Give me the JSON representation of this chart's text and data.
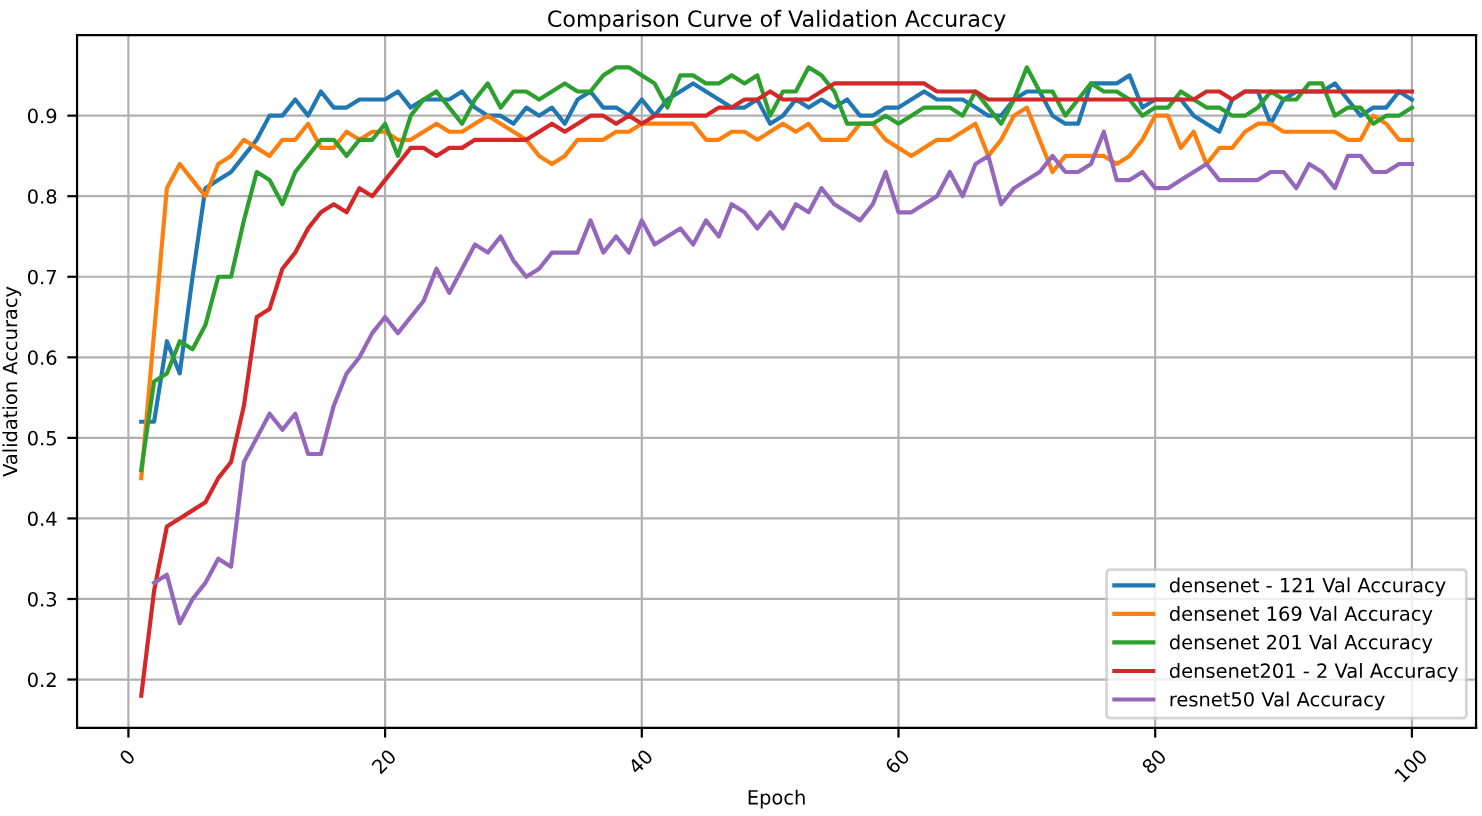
{
  "chart_data": {
    "type": "line",
    "title": "Comparison Curve of Validation Accuracy",
    "xlabel": "Epoch",
    "ylabel": "Validation Accuracy",
    "x": [
      1,
      2,
      3,
      4,
      5,
      6,
      7,
      8,
      9,
      10,
      11,
      12,
      13,
      14,
      15,
      16,
      17,
      18,
      19,
      20,
      21,
      22,
      23,
      24,
      25,
      26,
      27,
      28,
      29,
      30,
      31,
      32,
      33,
      34,
      35,
      36,
      37,
      38,
      39,
      40,
      41,
      42,
      43,
      44,
      45,
      46,
      47,
      48,
      49,
      50,
      51,
      52,
      53,
      54,
      55,
      56,
      57,
      58,
      59,
      60,
      61,
      62,
      63,
      64,
      65,
      66,
      67,
      68,
      69,
      70,
      71,
      72,
      73,
      74,
      75,
      76,
      77,
      78,
      79,
      80,
      81,
      82,
      83,
      84,
      85,
      86,
      87,
      88,
      89,
      90,
      91,
      92,
      93,
      94,
      95,
      96,
      97,
      98,
      99,
      100
    ],
    "xlim": [
      -4,
      105
    ],
    "xticks": [
      0,
      20,
      40,
      60,
      80,
      100
    ],
    "ylim": [
      0.14,
      1.0
    ],
    "yticks": [
      0.2,
      0.3,
      0.4,
      0.5,
      0.6,
      0.7,
      0.8,
      0.9
    ],
    "grid": true,
    "legend": "bottom right",
    "marker": "none",
    "line_style": "solid",
    "series": [
      {
        "name": "densenet - 121 Val Accuracy",
        "color": "#1f77b4",
        "values": [
          0.52,
          0.52,
          0.62,
          0.58,
          0.7,
          0.81,
          0.82,
          0.83,
          0.85,
          0.87,
          0.9,
          0.9,
          0.92,
          0.9,
          0.93,
          0.91,
          0.91,
          0.92,
          0.92,
          0.92,
          0.93,
          0.91,
          0.92,
          0.92,
          0.92,
          0.93,
          0.91,
          0.9,
          0.9,
          0.89,
          0.91,
          0.9,
          0.91,
          0.89,
          0.92,
          0.93,
          0.91,
          0.91,
          0.9,
          0.92,
          0.9,
          0.92,
          0.93,
          0.94,
          0.93,
          0.92,
          0.91,
          0.91,
          0.92,
          0.89,
          0.9,
          0.92,
          0.91,
          0.92,
          0.91,
          0.92,
          0.9,
          0.9,
          0.91,
          0.91,
          0.92,
          0.93,
          0.92,
          0.92,
          0.92,
          0.91,
          0.9,
          0.9,
          0.92,
          0.93,
          0.93,
          0.9,
          0.89,
          0.89,
          0.94,
          0.94,
          0.94,
          0.95,
          0.91,
          0.92,
          0.92,
          0.92,
          0.9,
          0.89,
          0.88,
          0.92,
          0.93,
          0.93,
          0.89,
          0.92,
          0.93,
          0.93,
          0.93,
          0.94,
          0.92,
          0.9,
          0.91,
          0.91,
          0.93,
          0.92
        ]
      },
      {
        "name": "densenet 169 Val Accuracy",
        "color": "#ff7f0e",
        "values": [
          0.45,
          0.63,
          0.81,
          0.84,
          0.82,
          0.8,
          0.84,
          0.85,
          0.87,
          0.86,
          0.85,
          0.87,
          0.87,
          0.89,
          0.86,
          0.86,
          0.88,
          0.87,
          0.88,
          0.88,
          0.87,
          0.87,
          0.88,
          0.89,
          0.88,
          0.88,
          0.89,
          0.9,
          0.89,
          0.88,
          0.87,
          0.85,
          0.84,
          0.85,
          0.87,
          0.87,
          0.87,
          0.88,
          0.88,
          0.89,
          0.89,
          0.89,
          0.89,
          0.89,
          0.87,
          0.87,
          0.88,
          0.88,
          0.87,
          0.88,
          0.89,
          0.88,
          0.89,
          0.87,
          0.87,
          0.87,
          0.89,
          0.89,
          0.87,
          0.86,
          0.85,
          0.86,
          0.87,
          0.87,
          0.88,
          0.89,
          0.85,
          0.87,
          0.9,
          0.91,
          0.87,
          0.83,
          0.85,
          0.85,
          0.85,
          0.85,
          0.84,
          0.85,
          0.87,
          0.9,
          0.9,
          0.86,
          0.88,
          0.84,
          0.86,
          0.86,
          0.88,
          0.89,
          0.89,
          0.88,
          0.88,
          0.88,
          0.88,
          0.88,
          0.87,
          0.87,
          0.9,
          0.89,
          0.87,
          0.87
        ]
      },
      {
        "name": "densenet 201 Val Accuracy",
        "color": "#2ca02c",
        "values": [
          0.46,
          0.57,
          0.58,
          0.62,
          0.61,
          0.64,
          0.7,
          0.7,
          0.77,
          0.83,
          0.82,
          0.79,
          0.83,
          0.85,
          0.87,
          0.87,
          0.85,
          0.87,
          0.87,
          0.89,
          0.85,
          0.9,
          0.92,
          0.93,
          0.91,
          0.89,
          0.92,
          0.94,
          0.91,
          0.93,
          0.93,
          0.92,
          0.93,
          0.94,
          0.93,
          0.93,
          0.95,
          0.96,
          0.96,
          0.95,
          0.94,
          0.91,
          0.95,
          0.95,
          0.94,
          0.94,
          0.95,
          0.94,
          0.95,
          0.9,
          0.93,
          0.93,
          0.96,
          0.95,
          0.93,
          0.89,
          0.89,
          0.89,
          0.9,
          0.89,
          0.9,
          0.91,
          0.91,
          0.91,
          0.9,
          0.93,
          0.91,
          0.89,
          0.92,
          0.96,
          0.93,
          0.93,
          0.9,
          0.92,
          0.94,
          0.93,
          0.93,
          0.92,
          0.9,
          0.91,
          0.91,
          0.93,
          0.92,
          0.91,
          0.91,
          0.9,
          0.9,
          0.91,
          0.93,
          0.92,
          0.92,
          0.94,
          0.94,
          0.9,
          0.91,
          0.91,
          0.89,
          0.9,
          0.9,
          0.91
        ]
      },
      {
        "name": "densenet201 - 2 Val Accuracy",
        "color": "#d62728",
        "values": [
          0.18,
          0.31,
          0.39,
          0.4,
          0.41,
          0.42,
          0.45,
          0.47,
          0.54,
          0.65,
          0.66,
          0.71,
          0.73,
          0.76,
          0.78,
          0.79,
          0.78,
          0.81,
          0.8,
          0.82,
          0.84,
          0.86,
          0.86,
          0.85,
          0.86,
          0.86,
          0.87,
          0.87,
          0.87,
          0.87,
          0.87,
          0.88,
          0.89,
          0.88,
          0.89,
          0.9,
          0.9,
          0.89,
          0.9,
          0.89,
          0.9,
          0.9,
          0.9,
          0.9,
          0.9,
          0.91,
          0.91,
          0.92,
          0.92,
          0.93,
          0.92,
          0.92,
          0.92,
          0.93,
          0.94,
          0.94,
          0.94,
          0.94,
          0.94,
          0.94,
          0.94,
          0.94,
          0.93,
          0.93,
          0.93,
          0.93,
          0.92,
          0.92,
          0.92,
          0.92,
          0.92,
          0.92,
          0.92,
          0.92,
          0.92,
          0.92,
          0.92,
          0.92,
          0.92,
          0.92,
          0.92,
          0.92,
          0.92,
          0.93,
          0.93,
          0.92,
          0.93,
          0.93,
          0.93,
          0.93,
          0.93,
          0.93,
          0.93,
          0.93,
          0.93,
          0.93,
          0.93,
          0.93,
          0.93,
          0.93
        ]
      },
      {
        "name": "resnet50 Val Accuracy",
        "color": "#9467bd",
        "values": [
          null,
          0.32,
          0.33,
          0.27,
          0.3,
          0.32,
          0.35,
          0.34,
          0.47,
          0.5,
          0.53,
          0.51,
          0.53,
          0.48,
          0.48,
          0.54,
          0.58,
          0.6,
          0.63,
          0.65,
          0.63,
          0.65,
          0.67,
          0.71,
          0.68,
          0.71,
          0.74,
          0.73,
          0.75,
          0.72,
          0.7,
          0.71,
          0.73,
          0.73,
          0.73,
          0.77,
          0.73,
          0.75,
          0.73,
          0.77,
          0.74,
          0.75,
          0.76,
          0.74,
          0.77,
          0.75,
          0.79,
          0.78,
          0.76,
          0.78,
          0.76,
          0.79,
          0.78,
          0.81,
          0.79,
          0.78,
          0.77,
          0.79,
          0.83,
          0.78,
          0.78,
          0.79,
          0.8,
          0.83,
          0.8,
          0.84,
          0.85,
          0.79,
          0.81,
          0.82,
          0.83,
          0.85,
          0.83,
          0.83,
          0.84,
          0.88,
          0.82,
          0.82,
          0.83,
          0.81,
          0.81,
          0.82,
          0.83,
          0.84,
          0.82,
          0.82,
          0.82,
          0.82,
          0.83,
          0.83,
          0.81,
          0.84,
          0.83,
          0.81,
          0.85,
          0.85,
          0.83,
          0.83,
          0.84,
          0.84
        ]
      }
    ]
  }
}
